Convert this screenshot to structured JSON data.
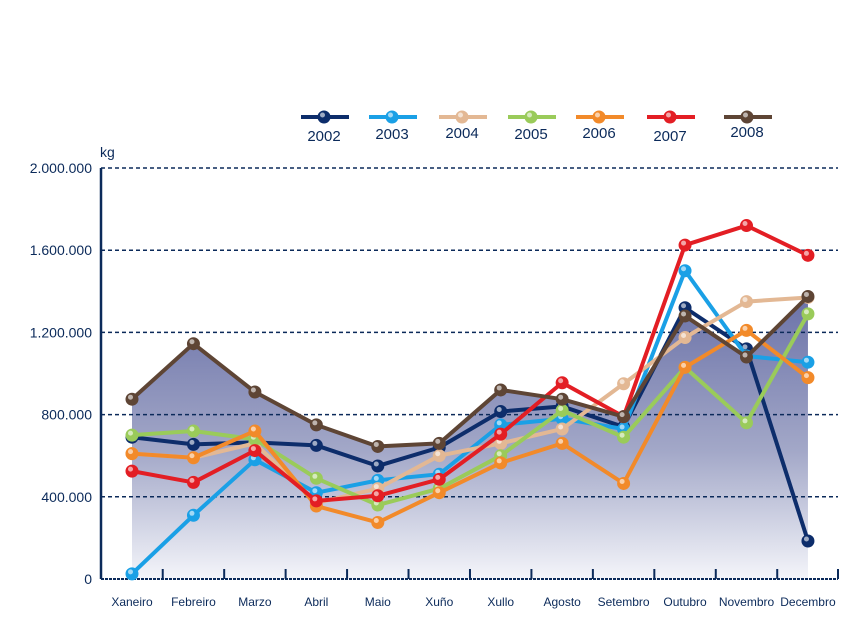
{
  "chart_data": {
    "type": "line",
    "title": "",
    "ylabel": "kg",
    "xlabel": "",
    "ylim": [
      0,
      2000000
    ],
    "yticks": [
      0,
      400000,
      800000,
      1200000,
      1600000,
      2000000
    ],
    "ytick_labels": [
      "0",
      "400.000",
      "800.000",
      "1.200.000",
      "1.600.000",
      "2.000.000"
    ],
    "grid": true,
    "legend_position": "top",
    "categories": [
      "Xaneiro",
      "Febreiro",
      "Marzo",
      "Abril",
      "Maio",
      "Xuño",
      "Xullo",
      "Agosto",
      "Setembro",
      "Outubro",
      "Novembro",
      "Decembro"
    ],
    "area_series": "2008",
    "series": [
      {
        "name": "2002",
        "color": "#0d2d6b",
        "values": [
          690000,
          655000,
          665000,
          650000,
          550000,
          640000,
          815000,
          840000,
          740000,
          1320000,
          1120000,
          185000
        ]
      },
      {
        "name": "2003",
        "color": "#1aa0e6",
        "values": [
          25000,
          310000,
          580000,
          420000,
          480000,
          510000,
          750000,
          780000,
          730000,
          1500000,
          1085000,
          1055000
        ]
      },
      {
        "name": "2004",
        "color": "#e3b894",
        "values": [
          610000,
          590000,
          660000,
          370000,
          440000,
          600000,
          660000,
          730000,
          950000,
          1175000,
          1350000,
          1370000
        ]
      },
      {
        "name": "2005",
        "color": "#9acb5a",
        "values": [
          700000,
          720000,
          680000,
          490000,
          360000,
          440000,
          600000,
          820000,
          690000,
          1030000,
          760000,
          1290000
        ]
      },
      {
        "name": "2006",
        "color": "#f28a2a",
        "values": [
          610000,
          590000,
          720000,
          355000,
          275000,
          420000,
          565000,
          660000,
          465000,
          1030000,
          1210000,
          980000
        ]
      },
      {
        "name": "2007",
        "color": "#e31e24",
        "values": [
          525000,
          470000,
          625000,
          380000,
          405000,
          485000,
          705000,
          955000,
          790000,
          1625000,
          1720000,
          1575000
        ]
      },
      {
        "name": "2008",
        "color": "#5e4535",
        "values": [
          875000,
          1145000,
          910000,
          750000,
          645000,
          660000,
          920000,
          875000,
          790000,
          1280000,
          1080000,
          1375000
        ]
      }
    ]
  }
}
